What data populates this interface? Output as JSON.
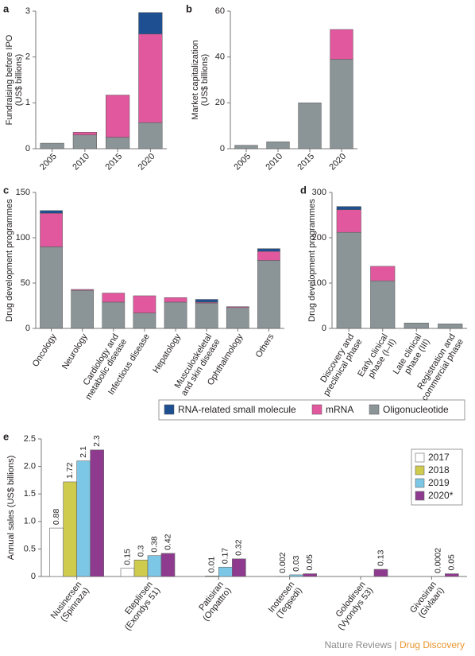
{
  "chart_data": [
    {
      "type": "stacked_bar",
      "label": "a",
      "ylabel": "Fundraising before IPO\n(US$ billions)",
      "categories": [
        "2005",
        "2010",
        "2015",
        "2020"
      ],
      "series": [
        {
          "name": "Oligonucleotide",
          "color": "#8b9497",
          "values": [
            0.12,
            0.3,
            0.25,
            0.57
          ]
        },
        {
          "name": "mRNA",
          "color": "#e2589f",
          "values": [
            0,
            0.06,
            0.92,
            1.93
          ]
        },
        {
          "name": "RNA-related small molecule",
          "color": "#1d4f91",
          "values": [
            0,
            0,
            0,
            0.47
          ]
        }
      ],
      "ylim": [
        0,
        3
      ],
      "yticks": [
        0,
        1,
        2,
        3
      ]
    },
    {
      "type": "stacked_bar",
      "label": "b",
      "ylabel": "Market capitalization\n(US$ billions)",
      "categories": [
        "2005",
        "2010",
        "2015",
        "2020"
      ],
      "series": [
        {
          "name": "Oligonucleotide",
          "color": "#8b9497",
          "values": [
            1.5,
            3,
            20,
            39
          ]
        },
        {
          "name": "mRNA",
          "color": "#e2589f",
          "values": [
            0,
            0,
            0,
            13
          ]
        }
      ],
      "ylim": [
        0,
        60
      ],
      "yticks": [
        0,
        20,
        40,
        60
      ]
    },
    {
      "type": "stacked_bar",
      "label": "c",
      "ylabel": "Drug development programmes",
      "categories": [
        "Oncology",
        "Neurology",
        "Cardiology and\nmetabolic disease",
        "Infectious disease",
        "Hepatology",
        "Musculoskeletal\nand skin disease",
        "Ophthalmology",
        "Others"
      ],
      "series": [
        {
          "name": "Oligonucleotide",
          "color": "#8b9497",
          "values": [
            90,
            42,
            29,
            17,
            29,
            28,
            23,
            75
          ]
        },
        {
          "name": "mRNA",
          "color": "#e2589f",
          "values": [
            37,
            1,
            10,
            19,
            5,
            1,
            1,
            10
          ]
        },
        {
          "name": "RNA-related small molecule",
          "color": "#1d4f91",
          "values": [
            3,
            0,
            0,
            0,
            0,
            3,
            0,
            3
          ]
        }
      ],
      "ylim": [
        0,
        150
      ],
      "yticks": [
        0,
        50,
        100,
        150
      ],
      "legend": "bottom"
    },
    {
      "type": "stacked_bar",
      "label": "d",
      "ylabel": "Drug development programmes",
      "categories": [
        "Discovery and\npreclinical phase",
        "Early clinical\nphase (I–II)",
        "Late clinical\nphase (III)",
        "Registration and\ncommercial phase"
      ],
      "series": [
        {
          "name": "Oligonucleotide",
          "color": "#8b9497",
          "values": [
            212,
            105,
            12,
            10
          ]
        },
        {
          "name": "mRNA",
          "color": "#e2589f",
          "values": [
            50,
            32,
            0,
            0
          ]
        },
        {
          "name": "RNA-related small molecule",
          "color": "#1d4f91",
          "values": [
            7,
            0,
            0,
            0
          ]
        }
      ],
      "ylim": [
        0,
        300
      ],
      "yticks": [
        0,
        100,
        200,
        300
      ]
    },
    {
      "type": "bar",
      "label": "e",
      "ylabel": "Annual sales (US$ billions)",
      "categories": [
        "Nusinersen\n(Spinraza)",
        "Eteplirsen\n(Exondys 51)",
        "Patisiran\n(Onpattro)",
        "Inotersen\n(Tegsedi)",
        "Golodirsen\n(Vyondys 53)",
        "Givosiran\n(Givlaari)"
      ],
      "series": [
        {
          "name": "2017",
          "color": "#ffffff",
          "values": [
            0.88,
            0.15,
            null,
            null,
            null,
            null
          ]
        },
        {
          "name": "2018",
          "color": "#cfcb4c",
          "values": [
            1.72,
            0.3,
            0.01,
            0.002,
            null,
            null
          ]
        },
        {
          "name": "2019",
          "color": "#7cc7e5",
          "values": [
            2.1,
            0.38,
            0.17,
            0.03,
            null,
            0.0002
          ]
        },
        {
          "name": "2020*",
          "color": "#8e3a8f",
          "values": [
            2.3,
            0.42,
            0.32,
            0.05,
            0.13,
            0.05
          ]
        }
      ],
      "ylim": [
        0,
        2.5
      ],
      "yticks": [
        0,
        0.5,
        {
          "value": 1,
          "label": "1.0"
        },
        1.5,
        {
          "value": 2,
          "label": "2.0"
        },
        2.5
      ],
      "legend": "upper right"
    }
  ],
  "footer": {
    "publisher": "Nature Reviews",
    "separator": "|",
    "journal": "Drug Discovery"
  }
}
